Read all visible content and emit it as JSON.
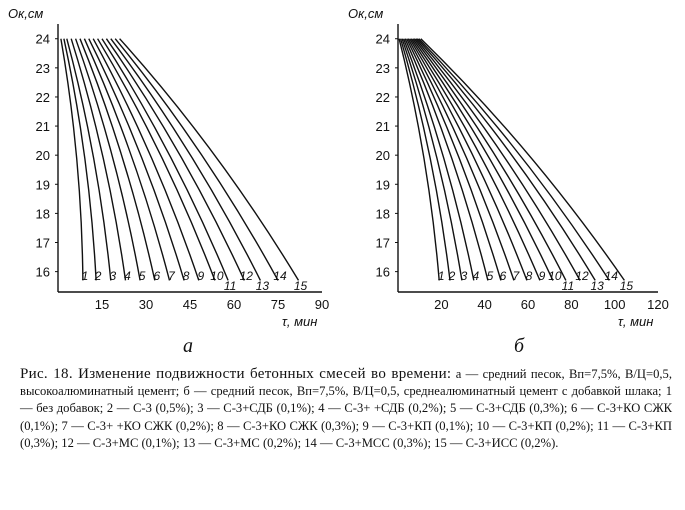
{
  "figure": {
    "panel_a_label": "а",
    "panel_b_label": "б",
    "caption_title": "Рис. 18. Изменение подвижности бетонных смесей во времени:",
    "caption_body": "а — средний песок, Вп=7,5%, В/Ц=0,5, высокоалюминатный цемент; б — средний песок, Вп=7,5%, В/Ц=0,5, среднеалюминатный цемент с добавкой шлака; 1 — без добавок; 2 — С-3 (0,5%); 3 — С-3+СДБ (0,1%); 4 — С-3+ +СДБ (0,2%); 5 — С-3+СДБ (0,3%); 6 — С-3+КО СЖК (0,1%); 7 — С-3+ +КО СЖК (0,2%); 8 — С-3+КО СЖК (0,3%); 9 — С-3+КП (0,1%); 10 — С-3+КП (0,2%); 11 — С-3+КП (0,3%); 12 — С-3+МС (0,1%); 13 — С-3+МС (0,2%); 14 — С-3+МСС (0,3%); 15 — С-3+ИСС (0,2%)."
  },
  "chart_data": [
    {
      "type": "line",
      "panel": "а",
      "ylabel": "Ок,см",
      "xlabel": "τ, мин",
      "yticks": [
        16,
        17,
        18,
        19,
        20,
        21,
        22,
        23,
        24
      ],
      "xticks": [
        15,
        30,
        45,
        60,
        75,
        90
      ],
      "ylim": [
        15.3,
        24.3
      ],
      "xlim": [
        0,
        90
      ],
      "series_labels": [
        "1",
        "2",
        "3",
        "4",
        "5",
        "6",
        "7",
        "8",
        "9",
        "10",
        "11",
        "12",
        "13",
        "14",
        "15"
      ],
      "series": [
        {
          "name": "1",
          "start": [
            1.0,
            24
          ],
          "end": [
            8.5,
            15.7
          ]
        },
        {
          "name": "2",
          "start": [
            2.0,
            24
          ],
          "end": [
            13.0,
            15.7
          ]
        },
        {
          "name": "3",
          "start": [
            3.0,
            24
          ],
          "end": [
            18.0,
            15.7
          ]
        },
        {
          "name": "4",
          "start": [
            4.5,
            24
          ],
          "end": [
            23.0,
            15.7
          ]
        },
        {
          "name": "5",
          "start": [
            6.0,
            24
          ],
          "end": [
            28.0,
            15.7
          ]
        },
        {
          "name": "6",
          "start": [
            7.5,
            24
          ],
          "end": [
            33.0,
            15.7
          ]
        },
        {
          "name": "7",
          "start": [
            9.0,
            24
          ],
          "end": [
            38.0,
            15.7
          ]
        },
        {
          "name": "8",
          "start": [
            10.5,
            24
          ],
          "end": [
            43.0,
            15.7
          ]
        },
        {
          "name": "9",
          "start": [
            12.0,
            24
          ],
          "end": [
            48.0,
            15.7
          ]
        },
        {
          "name": "10",
          "start": [
            13.5,
            24
          ],
          "end": [
            53.5,
            15.7
          ]
        },
        {
          "name": "11",
          "start": [
            15.0,
            24
          ],
          "end": [
            58.0,
            15.7
          ]
        },
        {
          "name": "12",
          "start": [
            16.5,
            24
          ],
          "end": [
            63.5,
            15.7
          ]
        },
        {
          "name": "13",
          "start": [
            18.0,
            24
          ],
          "end": [
            69.0,
            15.7
          ]
        },
        {
          "name": "14",
          "start": [
            19.5,
            24
          ],
          "end": [
            75.0,
            15.7
          ]
        },
        {
          "name": "15",
          "start": [
            21.0,
            24
          ],
          "end": [
            82.0,
            15.7
          ]
        }
      ]
    },
    {
      "type": "line",
      "panel": "б",
      "ylabel": "Ок,см",
      "xlabel": "τ, мин",
      "yticks": [
        16,
        17,
        18,
        19,
        20,
        21,
        22,
        23,
        24
      ],
      "xticks": [
        20,
        40,
        60,
        80,
        100,
        120
      ],
      "ylim": [
        15.3,
        24.3
      ],
      "xlim": [
        0,
        120
      ],
      "series_labels": [
        "1",
        "2",
        "3",
        "4",
        "5",
        "6",
        "7",
        "8",
        "9",
        "10",
        "11",
        "12",
        "13",
        "14",
        "15"
      ],
      "series": [
        {
          "name": "1",
          "start": [
            0.5,
            24
          ],
          "end": [
            19.0,
            15.7
          ]
        },
        {
          "name": "2",
          "start": [
            1.2,
            24
          ],
          "end": [
            24.0,
            15.7
          ]
        },
        {
          "name": "3",
          "start": [
            1.9,
            24
          ],
          "end": [
            29.5,
            15.7
          ]
        },
        {
          "name": "4",
          "start": [
            2.6,
            24
          ],
          "end": [
            35.0,
            15.7
          ]
        },
        {
          "name": "5",
          "start": [
            3.3,
            24
          ],
          "end": [
            41.5,
            15.7
          ]
        },
        {
          "name": "6",
          "start": [
            4.0,
            24
          ],
          "end": [
            47.5,
            15.7
          ]
        },
        {
          "name": "7",
          "start": [
            4.7,
            24
          ],
          "end": [
            53.5,
            15.7
          ]
        },
        {
          "name": "8",
          "start": [
            5.4,
            24
          ],
          "end": [
            59.5,
            15.7
          ]
        },
        {
          "name": "9",
          "start": [
            6.1,
            24
          ],
          "end": [
            65.5,
            15.7
          ]
        },
        {
          "name": "10",
          "start": [
            6.8,
            24
          ],
          "end": [
            71.5,
            15.7
          ]
        },
        {
          "name": "11",
          "start": [
            7.5,
            24
          ],
          "end": [
            77.5,
            15.7
          ]
        },
        {
          "name": "12",
          "start": [
            8.2,
            24
          ],
          "end": [
            84.0,
            15.7
          ]
        },
        {
          "name": "13",
          "start": [
            8.9,
            24
          ],
          "end": [
            91.0,
            15.7
          ]
        },
        {
          "name": "14",
          "start": [
            9.6,
            24
          ],
          "end": [
            97.5,
            15.7
          ]
        },
        {
          "name": "15",
          "start": [
            10.5,
            24
          ],
          "end": [
            104.5,
            15.7
          ]
        }
      ]
    }
  ]
}
